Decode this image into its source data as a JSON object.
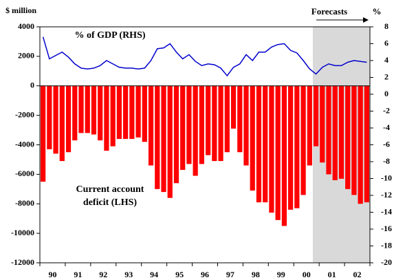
{
  "chart_data": {
    "type": "bar_line",
    "categories": [
      null,
      "90",
      null,
      null,
      null,
      "91",
      null,
      null,
      null,
      "92",
      null,
      null,
      null,
      "93",
      null,
      null,
      null,
      "94",
      null,
      null,
      null,
      "95",
      null,
      null,
      null,
      "96",
      null,
      null,
      null,
      "97",
      null,
      null,
      null,
      "98",
      null,
      null,
      null,
      "99",
      null,
      null,
      null,
      "00",
      null,
      null,
      null,
      "01",
      null,
      null,
      null,
      "02",
      null,
      null
    ],
    "series": [
      {
        "name": "Current account deficit (LHS)",
        "color": "#ff0000",
        "type": "bar",
        "values": [
          -6500,
          -4300,
          -4600,
          -5100,
          -4500,
          -3700,
          -3200,
          -3200,
          -3300,
          -3700,
          -4400,
          -4100,
          -3600,
          -3600,
          -3600,
          -3500,
          -3800,
          -5400,
          -7000,
          -7200,
          -7600,
          -6600,
          -5700,
          -5300,
          -6100,
          -5300,
          -4700,
          -5100,
          -5100,
          -4500,
          -2900,
          -4500,
          -5400,
          -7100,
          -7900,
          -7900,
          -8600,
          -9100,
          -9500,
          -8400,
          -8300,
          -7400,
          -5400,
          -4100,
          -5200,
          -6000,
          -6400,
          -6300,
          -7000,
          -7400,
          -8000,
          -7900
        ]
      },
      {
        "name": "% of GDP (RHS)",
        "color": "#0000cc",
        "type": "line",
        "axis": "y2",
        "values": [
          6.8,
          4.2,
          4.6,
          5.0,
          4.4,
          3.6,
          3.1,
          3.0,
          3.1,
          3.4,
          4.0,
          3.6,
          3.2,
          3.1,
          3.1,
          3.0,
          3.1,
          4.0,
          5.4,
          5.5,
          6.0,
          5.0,
          4.2,
          4.7,
          3.9,
          3.4,
          3.6,
          3.5,
          3.1,
          2.2,
          3.2,
          3.6,
          4.7,
          4.0,
          5.0,
          5.0,
          5.6,
          5.9,
          6.0,
          5.2,
          4.9,
          4.0,
          3.0,
          2.4,
          3.2,
          3.6,
          3.4,
          3.4,
          3.8,
          4.0,
          3.9,
          3.8
        ]
      }
    ],
    "ylabel": "$ million",
    "y2label": "%",
    "ylim": [
      -12000,
      4000
    ],
    "yticks": [
      -12000,
      -10000,
      -8000,
      -6000,
      -4000,
      -2000,
      0,
      2000,
      4000
    ],
    "y2lim": [
      -20,
      8
    ],
    "y2ticks": [
      -20,
      -18,
      -16,
      -14,
      -12,
      -10,
      -8,
      -6,
      -4,
      -2,
      0,
      2,
      4,
      6,
      8
    ],
    "forecast_label": "Forecasts",
    "forecast_start": 43
  }
}
